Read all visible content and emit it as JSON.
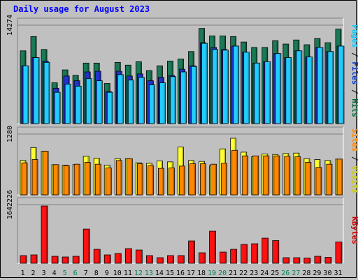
{
  "chart_data": {
    "type": "bar",
    "title": "Daily usage for August 2023",
    "categories": [
      "1",
      "2",
      "3",
      "4",
      "5",
      "6",
      "7",
      "8",
      "9",
      "10",
      "11",
      "12",
      "13",
      "14",
      "15",
      "16",
      "17",
      "18",
      "19",
      "20",
      "21",
      "22",
      "23",
      "24",
      "25",
      "26",
      "27",
      "28",
      "29",
      "30",
      "31"
    ],
    "weekend_days": [
      "5",
      "6",
      "12",
      "13",
      "19",
      "20",
      "26",
      "27"
    ],
    "panels": [
      {
        "id": "hits-files-pages",
        "ymax": 14274,
        "ymax_label": "14274",
        "ylabel_parts": [
          {
            "text": "Pages",
            "color": "#00ccff"
          },
          {
            "text": " / ",
            "color": "#000000"
          },
          {
            "text": "Files",
            "color": "#0033cc"
          },
          {
            "text": " / ",
            "color": "#000000"
          },
          {
            "text": "Hits",
            "color": "#006633"
          }
        ],
        "series": [
          {
            "name": "Hits",
            "color": "#1a7a55",
            "values": [
              10700,
              12800,
              10900,
              6000,
              7900,
              7100,
              8900,
              8900,
              5900,
              9000,
              8600,
              9100,
              7800,
              8500,
              9200,
              9500,
              10600,
              14000,
              12900,
              12900,
              12800,
              12000,
              11200,
              11200,
              12200,
              11700,
              12300,
              11600,
              12500,
              11900,
              13900
            ]
          },
          {
            "name": "Files",
            "color": "#2233cc",
            "values": [
              8500,
              9700,
              9200,
              5200,
              7000,
              6300,
              7600,
              7700,
              4700,
              7700,
              7000,
              7300,
              6300,
              6800,
              7100,
              8000,
              8500,
              11900,
              11200,
              10900,
              11400,
              10500,
              8900,
              9100,
              10300,
              9700,
              10700,
              9800,
              11200,
              10600,
              11400
            ]
          },
          {
            "name": "Pages",
            "color": "#22ccff",
            "values": [
              8500,
              9700,
              9000,
              4600,
              5800,
              5500,
              6600,
              6300,
              4600,
              7200,
              6400,
              6800,
              5700,
              6000,
              6900,
              7600,
              8400,
              11800,
              10900,
              10800,
              11400,
              10500,
              8900,
              9100,
              10300,
              9700,
              10700,
              9800,
              11200,
              10600,
              11400
            ]
          }
        ]
      },
      {
        "id": "visits-sites",
        "ymax": 1280,
        "ymax_label": "1280",
        "ylabel_parts": [
          {
            "text": "Sites",
            "color": "#ff8800"
          },
          {
            "text": " / ",
            "color": "#000000"
          },
          {
            "text": "Visits",
            "color": "#cccc00"
          }
        ],
        "series": [
          {
            "name": "Visits",
            "color": "#ffff33",
            "values": [
              740,
              1020,
              940,
              650,
              640,
              650,
              830,
              790,
              640,
              780,
              780,
              690,
              680,
              730,
              710,
              1030,
              740,
              720,
              630,
              990,
              1220,
              920,
              820,
              880,
              870,
              890,
              900,
              780,
              760,
              740,
              770
            ]
          },
          {
            "name": "Sites",
            "color": "#ff8800",
            "values": [
              690,
              760,
              940,
              650,
              630,
              660,
              700,
              660,
              580,
              740,
              780,
              670,
              630,
              570,
              580,
              620,
              670,
              670,
              660,
              680,
              960,
              840,
              840,
              840,
              840,
              830,
              820,
              700,
              590,
              660,
              770
            ]
          }
        ]
      },
      {
        "id": "kbytes",
        "ymax": 1642226,
        "ymax_label": "1642226",
        "ylabel_parts": [
          {
            "text": "KBytes",
            "color": "#cc0000"
          }
        ],
        "series": [
          {
            "name": "KBytes",
            "color": "#ff1111",
            "values": [
              220000,
              240000,
              1642226,
              200000,
              180000,
              200000,
              980000,
              400000,
              240000,
              280000,
              420000,
              380000,
              220000,
              160000,
              220000,
              220000,
              640000,
              300000,
              920000,
              320000,
              400000,
              540000,
              560000,
              720000,
              650000,
              160000,
              160000,
              150000,
              200000,
              170000,
              610000
            ]
          }
        ]
      }
    ]
  }
}
